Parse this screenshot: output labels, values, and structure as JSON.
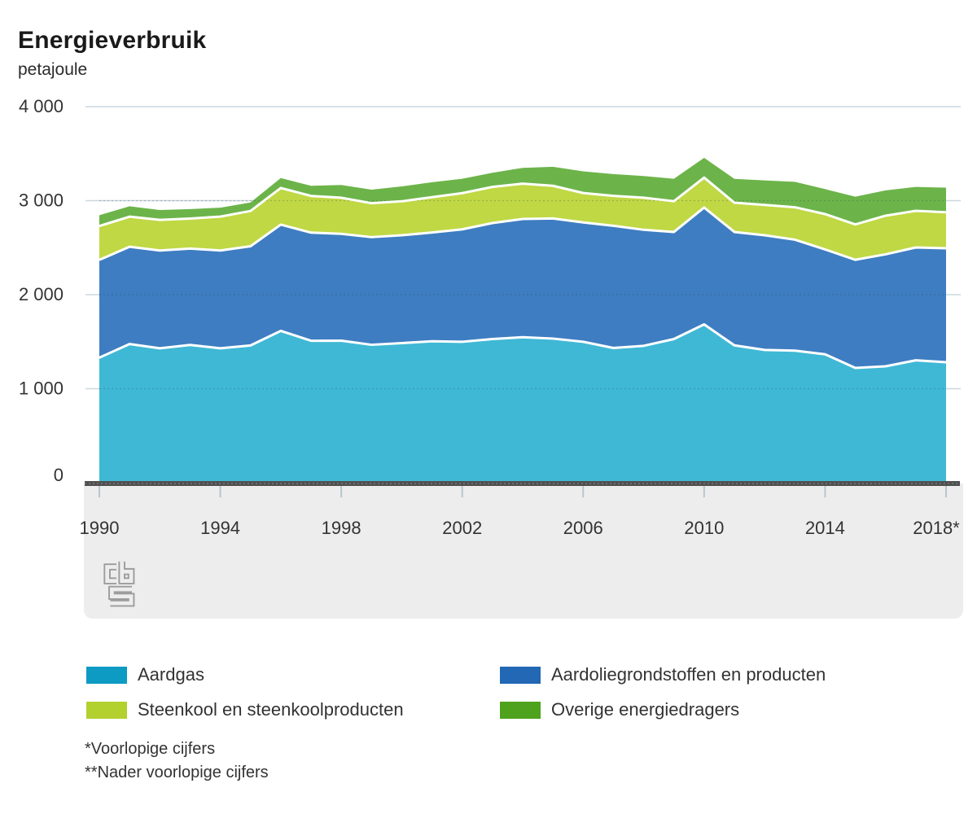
{
  "page": {
    "title": "Energieverbruik",
    "subtitle": "petajoule"
  },
  "footnotes": {
    "line1": "*Voorlopige cijfers",
    "line2": "**Nader voorlopige cijfers"
  },
  "logo": {
    "name": "cbs-logo",
    "color": "#9c9c9c"
  },
  "chart_data": {
    "type": "area",
    "stacked": true,
    "title": "Energieverbruik",
    "ylabel": "petajoule",
    "xlabel": "",
    "grid": true,
    "legend_position": "bottom",
    "ylim": [
      0,
      4000
    ],
    "y_ticks": [
      0,
      1000,
      2000,
      3000,
      4000
    ],
    "y_tick_labels": [
      "0",
      "1 000",
      "2 000",
      "3 000",
      "4 000"
    ],
    "x": [
      1990,
      1991,
      1992,
      1993,
      1994,
      1995,
      1996,
      1997,
      1998,
      1999,
      2000,
      2001,
      2002,
      2003,
      2004,
      2005,
      2006,
      2007,
      2008,
      2009,
      2010,
      2011,
      2012,
      2013,
      2014,
      2015,
      2016,
      2017,
      2018
    ],
    "x_ticks": [
      1990,
      1994,
      1998,
      2002,
      2006,
      2010,
      2014,
      2018
    ],
    "x_tick_labels": [
      "1990",
      "1994",
      "1998",
      "2002",
      "2006",
      "2010",
      "2014",
      "2018*"
    ],
    "series": [
      {
        "name": "Aardgas",
        "color": "#0d9bc4",
        "fill": "#3fb8d5",
        "values": [
          1330,
          1475,
          1430,
          1465,
          1430,
          1460,
          1615,
          1510,
          1511,
          1467,
          1485,
          1504,
          1499,
          1528,
          1548,
          1533,
          1499,
          1433,
          1456,
          1528,
          1684,
          1461,
          1412,
          1405,
          1366,
          1221,
          1238,
          1302,
          1281
        ]
      },
      {
        "name": "Aardoliegrondstoffen en producten",
        "color": "#2268b4",
        "fill": "#3e7dc1",
        "values": [
          1040,
          1035,
          1040,
          1025,
          1040,
          1055,
          1130,
          1150,
          1136,
          1145,
          1147,
          1157,
          1196,
          1234,
          1257,
          1278,
          1269,
          1300,
          1234,
          1139,
          1243,
          1206,
          1220,
          1180,
          1115,
          1150,
          1191,
          1200,
          1212
        ]
      },
      {
        "name": "Steenkool en steenkoolproducten",
        "color": "#b2d12f",
        "fill": "#bfd844",
        "values": [
          360,
          320,
          325,
          320,
          360,
          375,
          390,
          390,
          384,
          361,
          361,
          376,
          385,
          384,
          376,
          347,
          313,
          318,
          341,
          327,
          318,
          311,
          323,
          345,
          376,
          376,
          411,
          390,
          384
        ]
      },
      {
        "name": "Overige energiedragers",
        "color": "#4fa21d",
        "fill": "#6cb44a",
        "values": [
          115,
          110,
          105,
          100,
          95,
          90,
          105,
          108,
          136,
          144,
          159,
          159,
          153,
          151,
          168,
          202,
          231,
          232,
          231,
          239,
          211,
          254,
          260,
          270,
          266,
          295,
          269,
          254,
          261
        ]
      }
    ],
    "axis_colors": {
      "gridline": "#ccd7dd",
      "zero_line": "#4f4f4f",
      "tick": "#b7c6cd",
      "panel": "#ededed",
      "label": "#333333"
    }
  }
}
